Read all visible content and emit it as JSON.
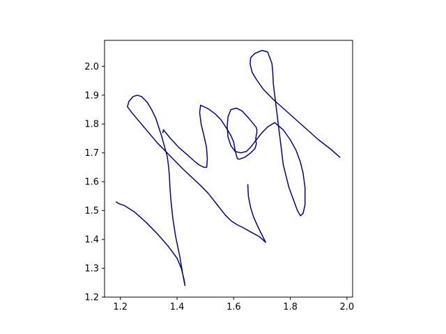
{
  "chart_data": {
    "type": "line",
    "title": "",
    "xlabel": "",
    "ylabel": "",
    "xlim": [
      1.144,
      2.02
    ],
    "ylim": [
      1.2,
      2.09
    ],
    "grid": false,
    "legend": "none",
    "x_ticks": [
      1.2,
      1.4,
      1.6,
      1.8,
      2.0
    ],
    "x_tick_labels": [
      "1.2",
      "1.4",
      "1.6",
      "1.8",
      "2.0"
    ],
    "y_ticks": [
      1.2,
      1.3,
      1.4,
      1.5,
      1.6,
      1.7,
      1.8,
      1.9,
      2.0
    ],
    "y_tick_labels": [
      "1.2",
      "1.3",
      "1.4",
      "1.5",
      "1.6",
      "1.7",
      "1.8",
      "1.9",
      "2.0"
    ],
    "series": [
      {
        "color": "#00008b",
        "x": [
          1.185,
          1.195,
          1.215,
          1.25,
          1.29,
          1.33,
          1.37,
          1.4,
          1.415,
          1.425,
          1.428,
          1.42,
          1.41,
          1.395,
          1.385,
          1.378,
          1.375,
          1.373,
          1.37,
          1.365,
          1.355,
          1.345,
          1.335,
          1.325,
          1.31,
          1.295,
          1.275,
          1.26,
          1.245,
          1.23,
          1.225,
          1.24,
          1.27,
          1.3,
          1.33,
          1.36,
          1.39,
          1.42,
          1.45,
          1.48,
          1.51,
          1.53,
          1.55,
          1.57,
          1.59,
          1.61,
          1.635,
          1.66,
          1.69,
          1.713,
          1.7,
          1.685,
          1.67,
          1.66,
          1.652,
          1.65
        ],
        "y": [
          1.53,
          1.524,
          1.517,
          1.495,
          1.46,
          1.42,
          1.375,
          1.335,
          1.3,
          1.26,
          1.24,
          1.28,
          1.34,
          1.41,
          1.475,
          1.54,
          1.58,
          1.62,
          1.655,
          1.69,
          1.725,
          1.76,
          1.79,
          1.82,
          1.85,
          1.875,
          1.895,
          1.9,
          1.895,
          1.878,
          1.86,
          1.84,
          1.805,
          1.77,
          1.735,
          1.705,
          1.675,
          1.645,
          1.617,
          1.59,
          1.56,
          1.535,
          1.51,
          1.485,
          1.465,
          1.452,
          1.44,
          1.426,
          1.41,
          1.39,
          1.415,
          1.445,
          1.478,
          1.51,
          1.55,
          1.59
        ]
      },
      {
        "color": "#00008b",
        "x": [
          1.35,
          1.352,
          1.375,
          1.405,
          1.44,
          1.465,
          1.48,
          1.495,
          1.505,
          1.507,
          1.504,
          1.495,
          1.485,
          1.48,
          1.483,
          1.49,
          1.51,
          1.535,
          1.555,
          1.575,
          1.59,
          1.6,
          1.605,
          1.61,
          1.613,
          1.62,
          1.64,
          1.66,
          1.675,
          1.68,
          1.678,
          1.68,
          1.682,
          1.682,
          1.68,
          1.67,
          1.655,
          1.63,
          1.61,
          1.59,
          1.58,
          1.577,
          1.58,
          1.59,
          1.605,
          1.625,
          1.645,
          1.66,
          1.68,
          1.7,
          1.72,
          1.745,
          1.775,
          1.8,
          1.82,
          1.835,
          1.845,
          1.852,
          1.852,
          1.845,
          1.836,
          1.825,
          1.81,
          1.795,
          1.785,
          1.775,
          1.77,
          1.765,
          1.76,
          1.755,
          1.75,
          1.745,
          1.74,
          1.738,
          1.735,
          1.72,
          1.7,
          1.675,
          1.66,
          1.658,
          1.665,
          1.68,
          1.705,
          1.74,
          1.78,
          1.82,
          1.86,
          1.9,
          1.94,
          1.975
        ],
        "y": [
          1.77,
          1.78,
          1.752,
          1.72,
          1.69,
          1.668,
          1.657,
          1.65,
          1.65,
          1.68,
          1.72,
          1.76,
          1.8,
          1.84,
          1.865,
          1.862,
          1.853,
          1.835,
          1.815,
          1.785,
          1.76,
          1.738,
          1.71,
          1.69,
          1.68,
          1.678,
          1.685,
          1.7,
          1.715,
          1.73,
          1.75,
          1.762,
          1.77,
          1.78,
          1.788,
          1.8,
          1.818,
          1.845,
          1.855,
          1.85,
          1.825,
          1.79,
          1.755,
          1.725,
          1.705,
          1.7,
          1.705,
          1.72,
          1.745,
          1.77,
          1.79,
          1.805,
          1.78,
          1.745,
          1.71,
          1.67,
          1.63,
          1.58,
          1.52,
          1.49,
          1.482,
          1.5,
          1.54,
          1.58,
          1.62,
          1.66,
          1.7,
          1.74,
          1.78,
          1.82,
          1.86,
          1.9,
          1.94,
          1.98,
          2.01,
          2.05,
          2.055,
          2.045,
          2.03,
          2.008,
          1.98,
          1.955,
          1.92,
          1.885,
          1.85,
          1.815,
          1.78,
          1.745,
          1.715,
          1.685
        ]
      }
    ]
  }
}
